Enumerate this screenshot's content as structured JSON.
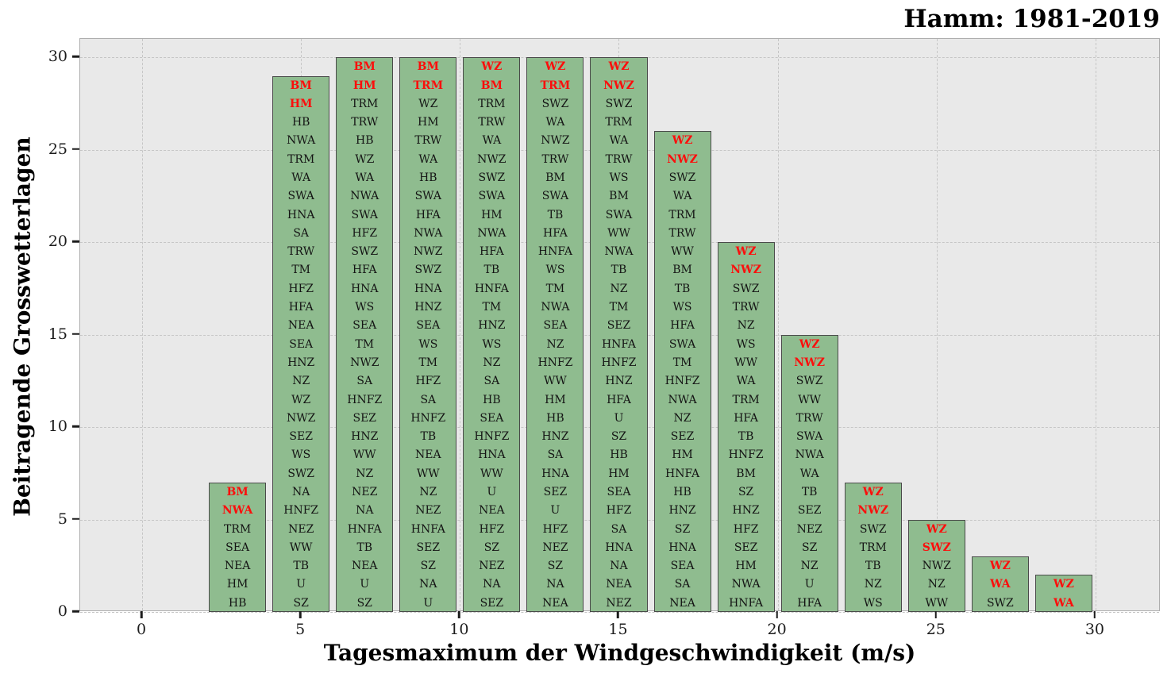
{
  "title": "Hamm: 1981-2019",
  "chart_data": {
    "type": "bar",
    "title": "Hamm: 1981-2019",
    "xlabel": "Tagesmaximum der Windgeschwindigkeit (m/s)",
    "ylabel": "Beitragende Grosswetterlagen",
    "x_ticks": [
      0,
      5,
      10,
      15,
      20,
      25,
      30
    ],
    "y_ticks": [
      0,
      5,
      10,
      15,
      20,
      25,
      30
    ],
    "xlim": [
      -1.95,
      32.05
    ],
    "ylim": [
      0,
      31
    ],
    "bar_width": 1.8,
    "grid": "dashed",
    "legend": "none",
    "colors": {
      "bar_fill": "#8fbc8f",
      "bar_edge": "#4a4a4a",
      "plot_bg": "#e9e9e9",
      "highlight_text": "#fb0e0c",
      "label_text": "#141414"
    },
    "bars": [
      {
        "x": 3,
        "height": 7,
        "red_top": 2,
        "labels": [
          "BM",
          "NWA",
          "TRM",
          "SEA",
          "NEA",
          "HM",
          "HB"
        ]
      },
      {
        "x": 5,
        "height": 29,
        "red_top": 2,
        "labels": [
          "BM",
          "HM",
          "HB",
          "NWA",
          "TRM",
          "WA",
          "SWA",
          "HNA",
          "SA",
          "TRW",
          "TM",
          "HFZ",
          "HFA",
          "NEA",
          "SEA",
          "HNZ",
          "NZ",
          "WZ",
          "NWZ",
          "SEZ",
          "WS",
          "SWZ",
          "NA",
          "HNFZ",
          "NEZ",
          "WW",
          "TB",
          "U",
          "SZ"
        ]
      },
      {
        "x": 7,
        "height": 30,
        "red_top": 2,
        "labels": [
          "BM",
          "HM",
          "TRM",
          "TRW",
          "HB",
          "WZ",
          "WA",
          "NWA",
          "SWA",
          "HFZ",
          "SWZ",
          "HFA",
          "HNA",
          "WS",
          "SEA",
          "TM",
          "NWZ",
          "SA",
          "HNFZ",
          "SEZ",
          "HNZ",
          "WW",
          "NZ",
          "NEZ",
          "NA",
          "HNFA",
          "TB",
          "NEA",
          "U",
          "SZ"
        ]
      },
      {
        "x": 9,
        "height": 30,
        "red_top": 2,
        "labels": [
          "BM",
          "TRM",
          "WZ",
          "HM",
          "TRW",
          "WA",
          "HB",
          "SWA",
          "HFA",
          "NWA",
          "NWZ",
          "SWZ",
          "HNA",
          "HNZ",
          "SEA",
          "WS",
          "TM",
          "HFZ",
          "SA",
          "HNFZ",
          "TB",
          "NEA",
          "WW",
          "NZ",
          "NEZ",
          "HNFA",
          "SEZ",
          "SZ",
          "NA",
          "U"
        ]
      },
      {
        "x": 11,
        "height": 30,
        "red_top": 2,
        "labels": [
          "WZ",
          "BM",
          "TRM",
          "TRW",
          "WA",
          "NWZ",
          "SWZ",
          "SWA",
          "HM",
          "NWA",
          "HFA",
          "TB",
          "HNFA",
          "TM",
          "HNZ",
          "WS",
          "NZ",
          "SA",
          "HB",
          "SEA",
          "HNFZ",
          "HNA",
          "WW",
          "U",
          "NEA",
          "HFZ",
          "SZ",
          "NEZ",
          "NA",
          "SEZ"
        ]
      },
      {
        "x": 13,
        "height": 30,
        "red_top": 2,
        "labels": [
          "WZ",
          "TRM",
          "SWZ",
          "WA",
          "NWZ",
          "TRW",
          "BM",
          "SWA",
          "TB",
          "HFA",
          "HNFA",
          "WS",
          "TM",
          "NWA",
          "SEA",
          "NZ",
          "HNFZ",
          "WW",
          "HM",
          "HB",
          "HNZ",
          "SA",
          "HNA",
          "SEZ",
          "U",
          "HFZ",
          "NEZ",
          "SZ",
          "NA",
          "NEA"
        ]
      },
      {
        "x": 15,
        "height": 30,
        "red_top": 2,
        "labels": [
          "WZ",
          "NWZ",
          "SWZ",
          "TRM",
          "WA",
          "TRW",
          "WS",
          "BM",
          "SWA",
          "WW",
          "NWA",
          "TB",
          "NZ",
          "TM",
          "SEZ",
          "HNFA",
          "HNFZ",
          "HNZ",
          "HFA",
          "U",
          "SZ",
          "HB",
          "HM",
          "SEA",
          "HFZ",
          "SA",
          "HNA",
          "NA",
          "NEA",
          "NEZ"
        ]
      },
      {
        "x": 17,
        "height": 26,
        "red_top": 2,
        "labels": [
          "WZ",
          "NWZ",
          "SWZ",
          "WA",
          "TRM",
          "TRW",
          "WW",
          "BM",
          "TB",
          "WS",
          "HFA",
          "SWA",
          "TM",
          "HNFZ",
          "NWA",
          "NZ",
          "SEZ",
          "HM",
          "HNFA",
          "HB",
          "HNZ",
          "SZ",
          "HNA",
          "SEA",
          "SA",
          "NEA"
        ]
      },
      {
        "x": 19,
        "height": 20,
        "red_top": 2,
        "labels": [
          "WZ",
          "NWZ",
          "SWZ",
          "TRW",
          "NZ",
          "WS",
          "WW",
          "WA",
          "TRM",
          "HFA",
          "TB",
          "HNFZ",
          "BM",
          "SZ",
          "HNZ",
          "HFZ",
          "SEZ",
          "HM",
          "NWA",
          "HNFA"
        ]
      },
      {
        "x": 21,
        "height": 15,
        "red_top": 2,
        "labels": [
          "WZ",
          "NWZ",
          "SWZ",
          "WW",
          "TRW",
          "SWA",
          "NWA",
          "WA",
          "TB",
          "SEZ",
          "NEZ",
          "SZ",
          "NZ",
          "U",
          "HFA"
        ]
      },
      {
        "x": 23,
        "height": 7,
        "red_top": 2,
        "labels": [
          "WZ",
          "NWZ",
          "SWZ",
          "TRM",
          "TB",
          "NZ",
          "WS"
        ]
      },
      {
        "x": 25,
        "height": 5,
        "red_top": 2,
        "labels": [
          "WZ",
          "SWZ",
          "NWZ",
          "NZ",
          "WW"
        ]
      },
      {
        "x": 27,
        "height": 3,
        "red_top": 2,
        "labels": [
          "WZ",
          "WA",
          "SWZ"
        ]
      },
      {
        "x": 29,
        "height": 2,
        "red_top": 2,
        "labels": [
          "WZ",
          "WA"
        ]
      }
    ]
  }
}
